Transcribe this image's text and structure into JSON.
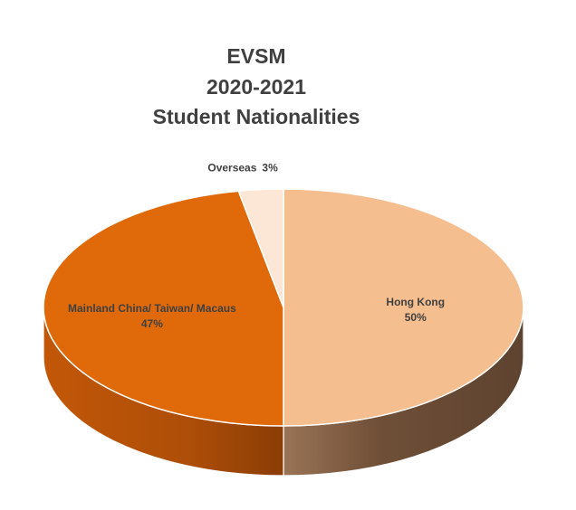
{
  "chart_data": {
    "type": "pie",
    "title": [
      "EVSM",
      "2020-2021",
      "Student Nationalities"
    ],
    "slices": [
      {
        "label": "Hong Kong",
        "value": 50,
        "value_label": "50%",
        "color": "#F5BE8F"
      },
      {
        "label": "Mainland China/ Taiwan/ Macaus",
        "value": 47,
        "value_label": "47%",
        "color": "#E06A0A"
      },
      {
        "label": "Overseas",
        "value": 3,
        "value_label": "3%",
        "color": "#FCE6D6"
      }
    ],
    "style": "3d",
    "legend": "none",
    "side_colors": {
      "Hong Kong": "#6E4E35",
      "Mainland China/ Taiwan/ Macaus": "#B5520A"
    }
  }
}
